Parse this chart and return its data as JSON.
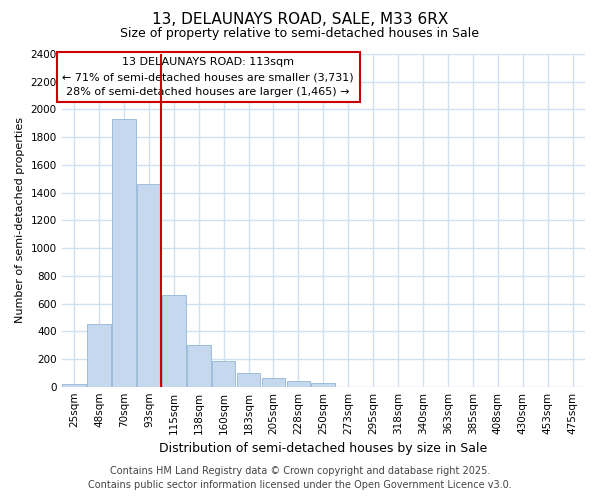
{
  "title": "13, DELAUNAYS ROAD, SALE, M33 6RX",
  "subtitle": "Size of property relative to semi-detached houses in Sale",
  "xlabel": "Distribution of semi-detached houses by size in Sale",
  "ylabel": "Number of semi-detached properties",
  "categories": [
    "25sqm",
    "48sqm",
    "70sqm",
    "93sqm",
    "115sqm",
    "138sqm",
    "160sqm",
    "183sqm",
    "205sqm",
    "228sqm",
    "250sqm",
    "273sqm",
    "295sqm",
    "318sqm",
    "340sqm",
    "363sqm",
    "385sqm",
    "408sqm",
    "430sqm",
    "453sqm",
    "475sqm"
  ],
  "values": [
    20,
    450,
    1930,
    1460,
    660,
    300,
    185,
    100,
    60,
    40,
    30,
    0,
    0,
    0,
    0,
    0,
    0,
    0,
    0,
    0,
    0
  ],
  "bar_color": "#c5d8ed",
  "bar_edge_color": "#9dbdda",
  "vline_color": "#cc0000",
  "vline_x_index": 4,
  "annotation_title": "13 DELAUNAYS ROAD: 113sqm",
  "annotation_line1": "← 71% of semi-detached houses are smaller (3,731)",
  "annotation_line2": "28% of semi-detached houses are larger (1,465) →",
  "annotation_box_color": "#cc0000",
  "ylim": [
    0,
    2400
  ],
  "yticks": [
    0,
    200,
    400,
    600,
    800,
    1000,
    1200,
    1400,
    1600,
    1800,
    2000,
    2200,
    2400
  ],
  "bg_color": "#ffffff",
  "plot_bg_color": "#ffffff",
  "grid_color": "#d0e0f0",
  "title_fontsize": 11,
  "subtitle_fontsize": 9,
  "ylabel_fontsize": 8,
  "xlabel_fontsize": 9,
  "tick_fontsize": 7.5,
  "footer_fontsize": 7,
  "footer1": "Contains HM Land Registry data © Crown copyright and database right 2025.",
  "footer2": "Contains public sector information licensed under the Open Government Licence v3.0."
}
